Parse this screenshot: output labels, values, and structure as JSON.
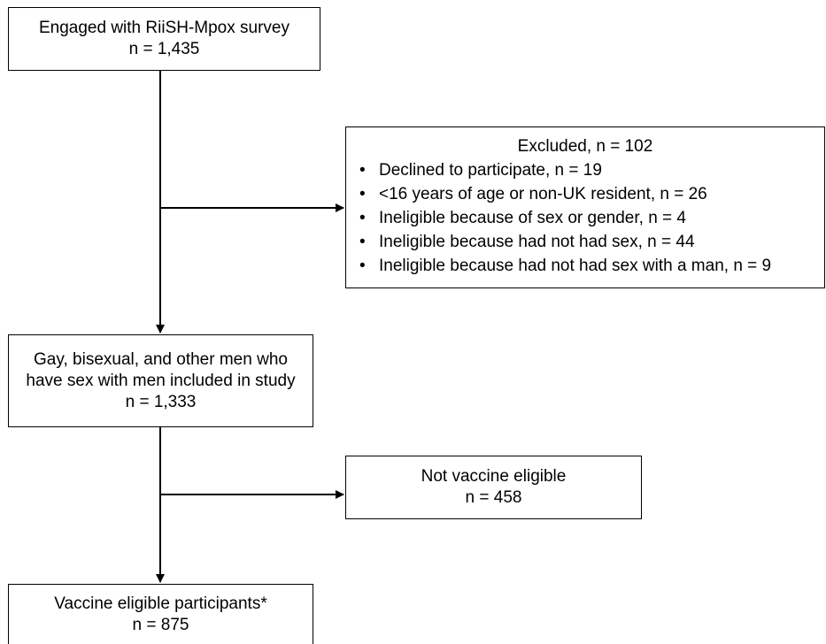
{
  "flow": {
    "engaged": {
      "line1": "Engaged with RiiSH-Mpox survey",
      "line2": "n = 1,435"
    },
    "excluded": {
      "title": "Excluded, n = 102",
      "items": [
        "Declined to participate, n = 19",
        "<16 years of age or non-UK resident, n = 26",
        "Ineligible because of sex or gender, n = 4",
        "Ineligible because had not had sex, n = 44",
        "Ineligible because had not had sex with a man, n = 9"
      ],
      "bullet": "•"
    },
    "included": {
      "line1": "Gay, bisexual, and other men who",
      "line2": "have sex with men included in study",
      "line3": "n = 1,333"
    },
    "not_eligible": {
      "line1": "Not vaccine eligible",
      "line2": "n = 458"
    },
    "eligible": {
      "line1": "Vaccine eligible participants*",
      "line2": "n = 875"
    }
  },
  "colors": {
    "line": "#000000",
    "background": "#ffffff"
  }
}
